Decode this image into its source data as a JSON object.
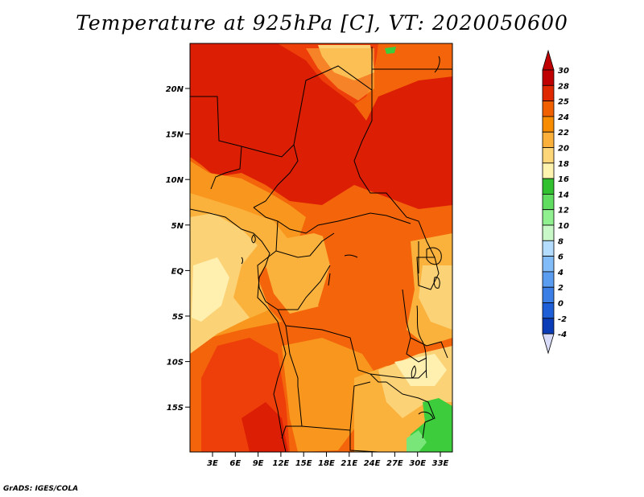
{
  "title": "Temperature at 925hPa [C], VT: 2020050600",
  "credit": "GrADS: IGES/COLA",
  "lat_labels": [
    "20N",
    "15N",
    "10N",
    "5N",
    "EQ",
    "5S",
    "10S",
    "15S"
  ],
  "lon_labels": [
    "3E",
    "6E",
    "9E",
    "12E",
    "15E",
    "18E",
    "21E",
    "24E",
    "27E",
    "30E",
    "33E"
  ],
  "colorbar": {
    "labels": [
      "30",
      "28",
      "25",
      "24",
      "22",
      "20",
      "18",
      "16",
      "14",
      "12",
      "10",
      "8",
      "6",
      "4",
      "2",
      "0",
      "-2",
      "-4"
    ],
    "colors": [
      "#c00000",
      "#e02800",
      "#f06000",
      "#f88c00",
      "#fbb03c",
      "#fcd678",
      "#fff3b0",
      "#30c030",
      "#60dc60",
      "#90f090",
      "#c8f8c8",
      "#b4dcff",
      "#82bcf8",
      "#5a9cf0",
      "#3a7ee6",
      "#1e5ed6",
      "#0a3cb8",
      "#061c8c",
      "#0a0050"
    ],
    "top_arrow_color": "#c00000",
    "bottom_arrow_color": "#d8dcf8"
  },
  "palette": {
    "deep_red": "#dc1e05",
    "red_orange": "#ee3e0a",
    "orange": "#f4640a",
    "amber": "#f8961e",
    "light_orange": "#fbb23c",
    "yellow": "#fcd276",
    "pale_yellow": "#fff0b0",
    "green": "#3ccc3c",
    "light_green": "#78e678"
  }
}
